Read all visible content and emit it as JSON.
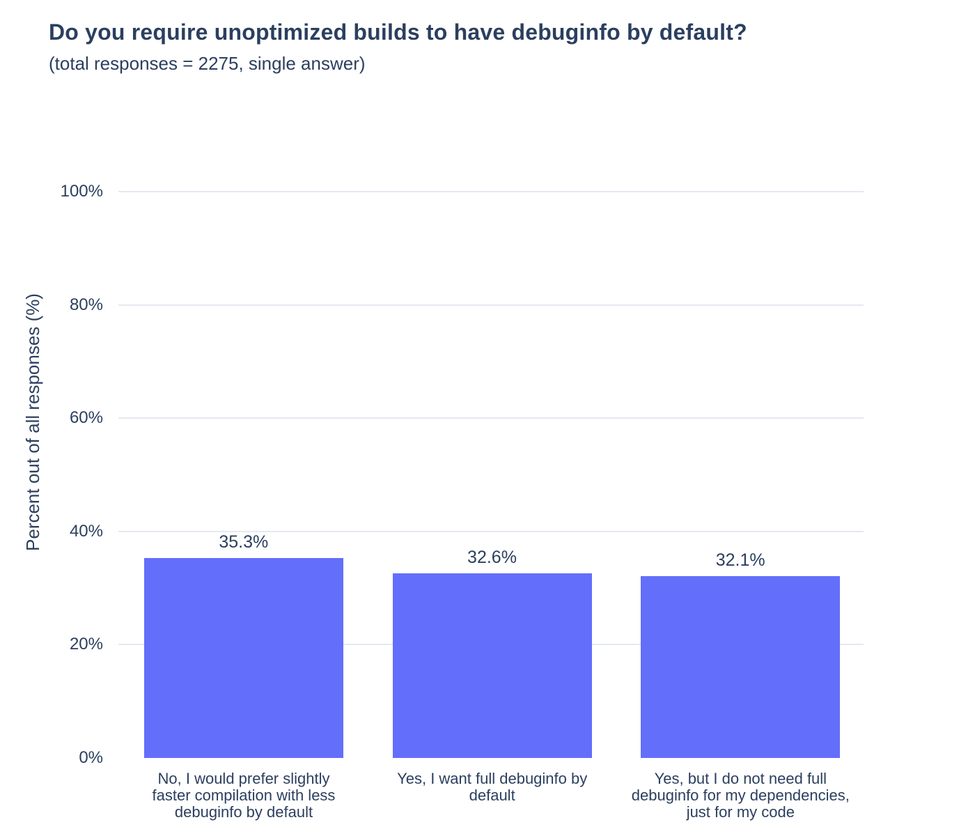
{
  "chart_data": {
    "type": "bar",
    "title": "Do you require unoptimized builds to have debuginfo by default?",
    "subtitle": "(total responses = 2275, single answer)",
    "ylabel": "Percent out of all responses (%)",
    "xlabel": "",
    "categories": [
      "No, I would prefer slightly faster compilation with less debuginfo by default",
      "Yes, I want full debuginfo by default",
      "Yes, but I do not need full debuginfo for my dependencies, just for my code"
    ],
    "category_lines": [
      [
        "No, I would prefer slightly",
        "faster compilation with less",
        "debuginfo by default"
      ],
      [
        "Yes, I want full debuginfo by",
        "default"
      ],
      [
        "Yes, but I do not need full",
        "debuginfo for my dependencies,",
        "just for my code"
      ]
    ],
    "values": [
      35.3,
      32.6,
      32.1
    ],
    "value_labels": [
      "35.3%",
      "32.6%",
      "32.1%"
    ],
    "yticks": [
      0,
      20,
      40,
      60,
      80,
      100
    ],
    "ytick_labels": [
      "0%",
      "20%",
      "40%",
      "60%",
      "80%",
      "100%"
    ],
    "ylim": [
      0,
      100
    ],
    "grid": true,
    "legend_position": "none",
    "colors": {
      "bar": "#636efa",
      "text": "#2b3f5f",
      "grid": "#e4e8f1",
      "background": "#ffffff"
    }
  }
}
